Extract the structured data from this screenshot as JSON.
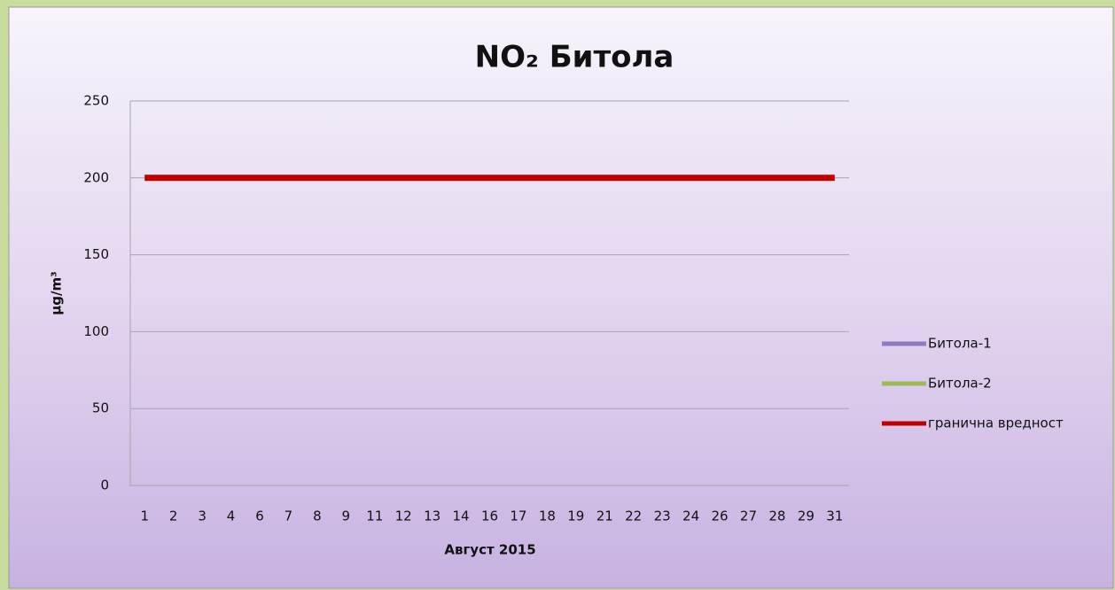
{
  "chart_data": {
    "type": "line",
    "title": "NO₂ Битола",
    "xlabel": "Август 2015",
    "ylabel": "μg/m³",
    "categories": [
      "1",
      "2",
      "3",
      "4",
      "6",
      "7",
      "8",
      "9",
      "11",
      "12",
      "13",
      "14",
      "16",
      "17",
      "18",
      "19",
      "21",
      "22",
      "23",
      "24",
      "26",
      "27",
      "28",
      "29",
      "31"
    ],
    "series": [
      {
        "name": "Битола-1",
        "color": "#8e7cc3",
        "values": [
          null,
          null,
          null,
          null,
          null,
          null,
          null,
          null,
          null,
          null,
          null,
          null,
          null,
          null,
          null,
          null,
          null,
          null,
          null,
          null,
          null,
          null,
          null,
          null,
          null
        ]
      },
      {
        "name": "Битола-2",
        "color": "#9bbb59",
        "values": [
          null,
          null,
          null,
          null,
          null,
          null,
          null,
          null,
          null,
          null,
          null,
          null,
          null,
          null,
          null,
          null,
          null,
          null,
          null,
          null,
          null,
          null,
          null,
          null,
          null
        ]
      },
      {
        "name": "гранична вредност",
        "color": "#c00000",
        "values": [
          200,
          200,
          200,
          200,
          200,
          200,
          200,
          200,
          200,
          200,
          200,
          200,
          200,
          200,
          200,
          200,
          200,
          200,
          200,
          200,
          200,
          200,
          200,
          200,
          200
        ]
      }
    ],
    "ylim": [
      0,
      250
    ],
    "yticks": [
      0,
      50,
      100,
      150,
      200,
      250
    ],
    "grid": true,
    "legend": "right"
  }
}
